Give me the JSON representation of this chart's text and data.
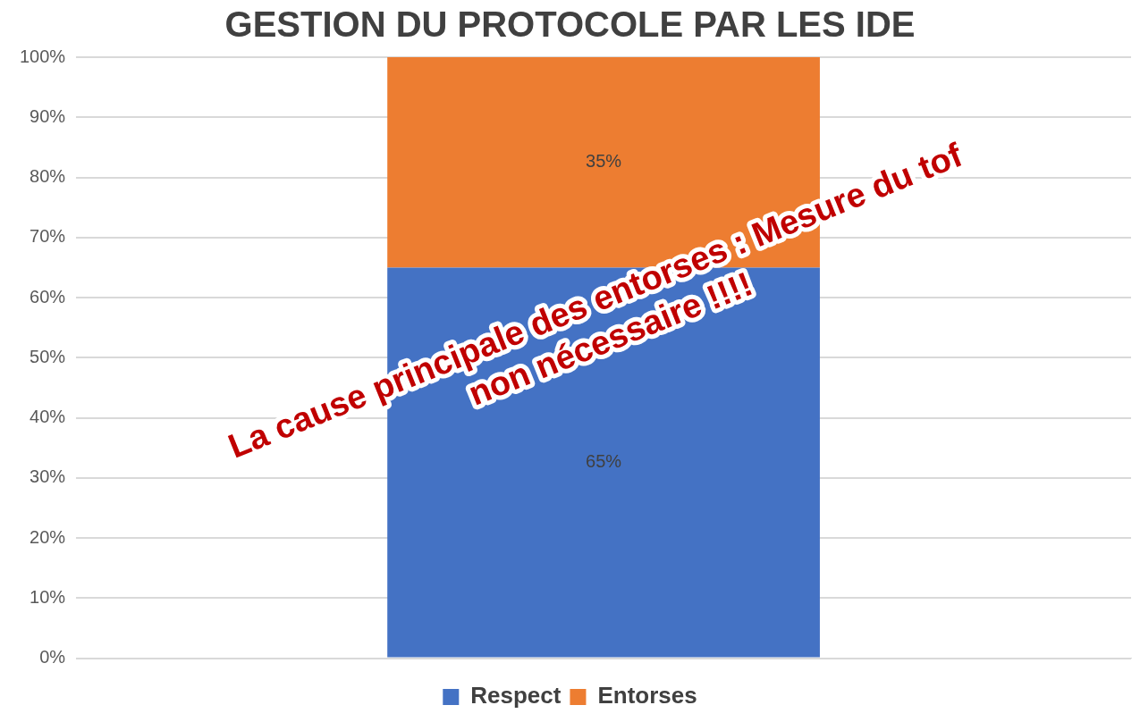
{
  "chart_data": {
    "type": "bar",
    "title": "GESTION DU PROTOCOLE PAR LES IDE",
    "categories": [
      null
    ],
    "stacked": true,
    "series": [
      {
        "name": "Respect",
        "color": "#4472c4",
        "values": [
          65
        ],
        "value_labels": [
          "65%"
        ]
      },
      {
        "name": "Entorses",
        "color": "#ed7d31",
        "values": [
          35
        ],
        "value_labels": [
          "35%"
        ]
      }
    ],
    "ylim": [
      0,
      100
    ],
    "yticks": [
      {
        "value": 0,
        "label": "0%"
      },
      {
        "value": 10,
        "label": "10%"
      },
      {
        "value": 20,
        "label": "20%"
      },
      {
        "value": 30,
        "label": "30%"
      },
      {
        "value": 40,
        "label": "40%"
      },
      {
        "value": 50,
        "label": "50%"
      },
      {
        "value": 60,
        "label": "60%"
      },
      {
        "value": 70,
        "label": "70%"
      },
      {
        "value": 80,
        "label": "80%"
      },
      {
        "value": 90,
        "label": "90%"
      },
      {
        "value": 100,
        "label": "100%"
      }
    ],
    "grid": "y",
    "legend": "bottom",
    "annotations": [
      "La cause principale des entorses : Mesure du tof non nécessaire !!!!"
    ]
  }
}
